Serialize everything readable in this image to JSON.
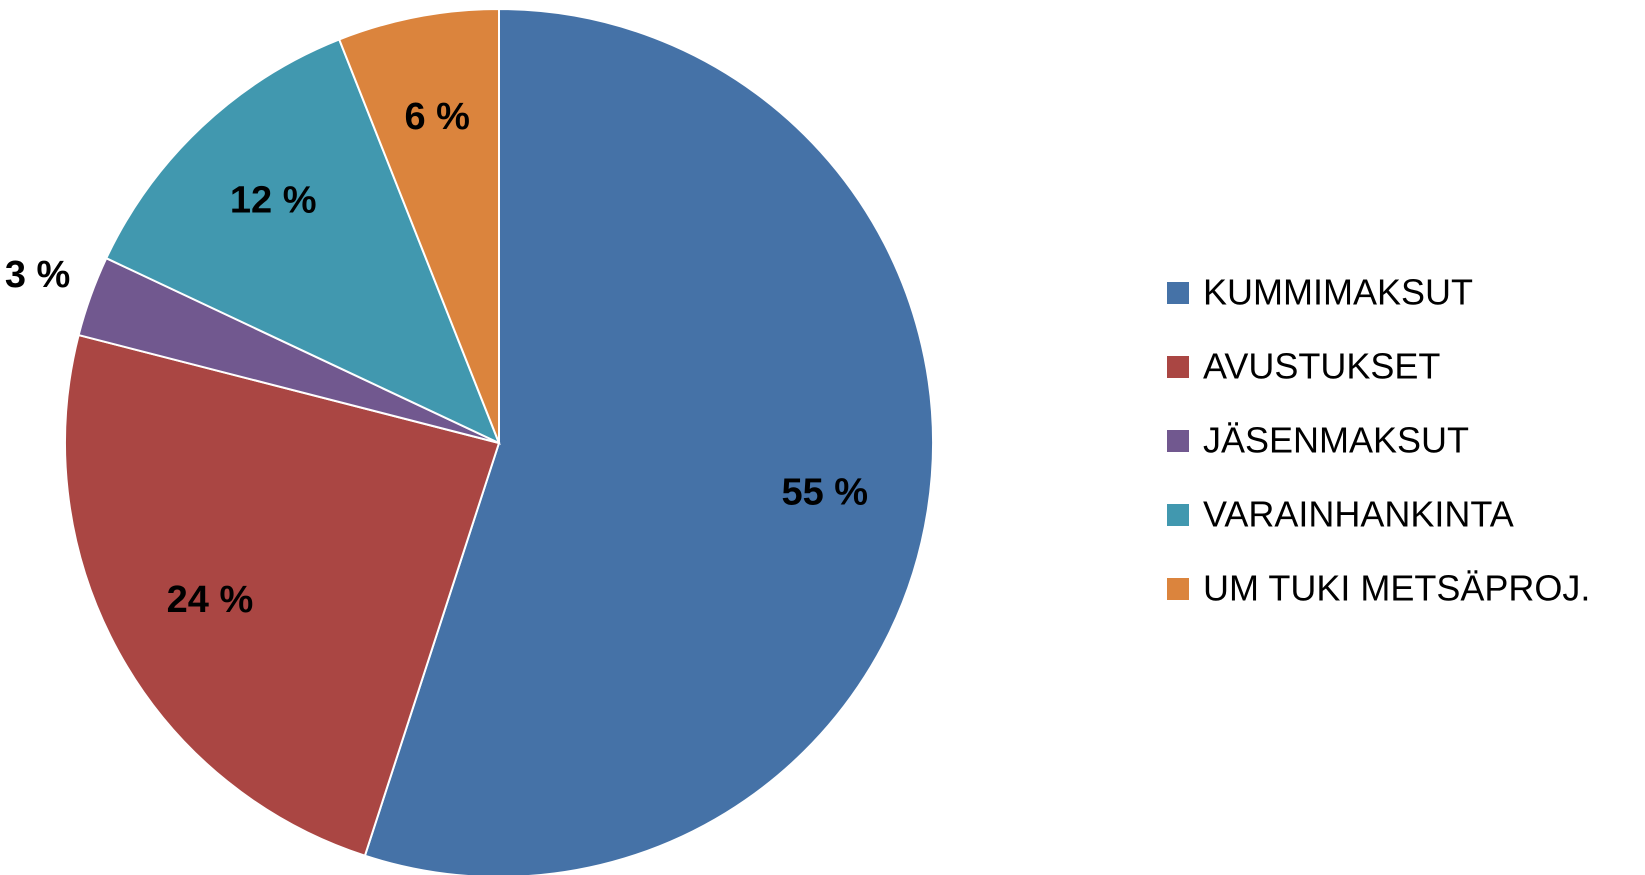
{
  "chart_data": {
    "type": "pie",
    "categories": [
      "KUMMIMAKSUT",
      "AVUSTUKSET",
      "JÄSENMAKSUT",
      "VARAINHANKINTA",
      "UM TUKI METSÄPROJ."
    ],
    "values": [
      55,
      24,
      3,
      12,
      6
    ],
    "value_labels": [
      "55 %",
      "24 %",
      "3 %",
      "12 %",
      "6 %"
    ],
    "colors": [
      "#4572A7",
      "#AA4643",
      "#71588F",
      "#4198AF",
      "#DB843D"
    ],
    "legend": "right"
  }
}
